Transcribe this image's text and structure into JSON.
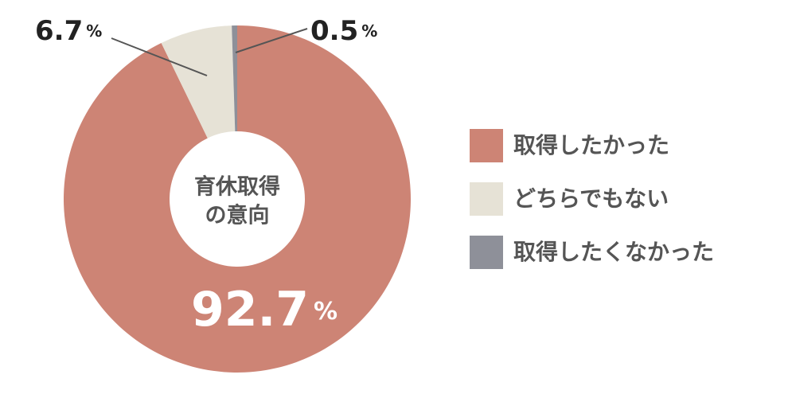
{
  "chart_data": {
    "type": "donut",
    "center_text": [
      "育休取得",
      "の意向"
    ],
    "categories": [
      "取得したかった",
      "どちらでもない",
      "取得したくなかった"
    ],
    "values": [
      92.7,
      6.7,
      0.5
    ],
    "unit": "%",
    "colors": [
      "#cd8475",
      "#e6e2d6",
      "#8e9099"
    ],
    "legend": "right"
  }
}
